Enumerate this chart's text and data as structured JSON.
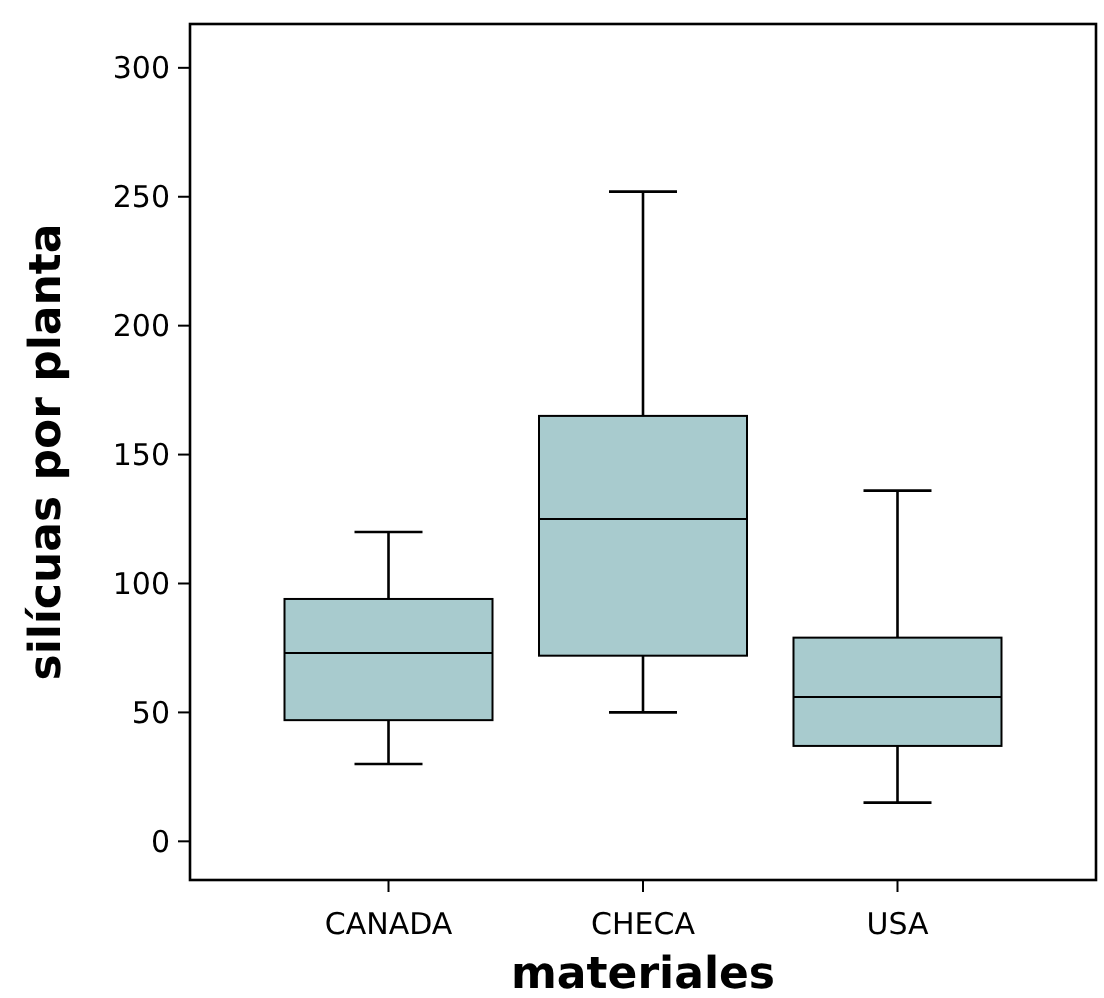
{
  "chart_data": {
    "type": "box",
    "xlabel": "materiales",
    "ylabel": "silícuas por planta",
    "categories": [
      "CANADA",
      "CHECA",
      "USA"
    ],
    "color": "#a8cbce",
    "ylim": [
      -15,
      317
    ],
    "yticks": [
      0,
      50,
      100,
      150,
      200,
      250,
      300
    ],
    "boxes": [
      {
        "low": 30,
        "q1": 47,
        "median": 73,
        "q3": 94,
        "high": 120
      },
      {
        "low": 50,
        "q1": 72,
        "median": 125,
        "q3": 165,
        "high": 252
      },
      {
        "low": 15,
        "q1": 37,
        "median": 56,
        "q3": 79,
        "high": 136
      }
    ]
  }
}
